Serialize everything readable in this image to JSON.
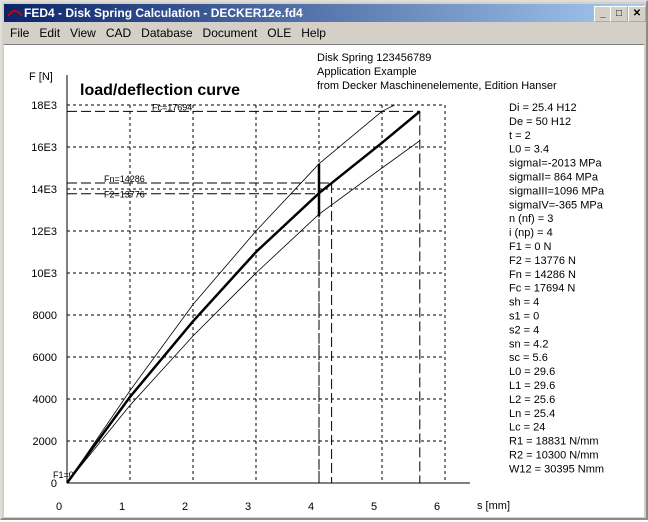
{
  "window": {
    "title": "FED4  -  Disk Spring Calculation  -  DECKER12e.fd4",
    "icon": "FED4"
  },
  "menu": [
    "File",
    "Edit",
    "View",
    "CAD",
    "Database",
    "Document",
    "OLE",
    "Help"
  ],
  "header": [
    "Disk Spring  123456789",
    "Application Example",
    "from Decker Maschinenelemente, Edition Hanser"
  ],
  "chart_data": {
    "type": "line",
    "title": "load/deflection curve",
    "x_label": "s [mm]",
    "y_label": "F [N]",
    "xlim": [
      0,
      6
    ],
    "xticks": [
      0,
      1,
      2,
      3,
      4,
      5,
      6
    ],
    "ylim": [
      0,
      18000
    ],
    "yticks": [
      0,
      2000,
      4000,
      6000,
      8000,
      {
        "value": 10000,
        "label": "10E3"
      },
      {
        "value": 12000,
        "label": "12E3"
      },
      {
        "value": 14000,
        "label": "14E3"
      },
      {
        "value": 16000,
        "label": "16E3"
      },
      {
        "value": 18000,
        "label": "18E3"
      }
    ],
    "grid": true,
    "series": [
      {
        "color": "#000000",
        "width": 2.5,
        "x": [
          0,
          1,
          2,
          3,
          4,
          5,
          5.6
        ],
        "values": [
          0,
          4100,
          7700,
          11000,
          13800,
          16200,
          17694
        ]
      },
      {
        "color": "#000000",
        "width": 0.8,
        "x": [
          0,
          1,
          2,
          3,
          4,
          5,
          5.2
        ],
        "values": [
          0,
          4400,
          8500,
          12000,
          15200,
          17700,
          18000
        ]
      },
      {
        "color": "#000000",
        "width": 0.8,
        "x": [
          0,
          1,
          2,
          3,
          4,
          5,
          5.6
        ],
        "values": [
          0,
          3700,
          7000,
          10000,
          12800,
          15000,
          16300
        ]
      }
    ],
    "reference_lines": [
      {
        "label": "Fc=17694",
        "value": 17694,
        "s": 5.6
      },
      {
        "label": "Fn=14286",
        "value": 14286,
        "s": 4.2
      },
      {
        "label": "F2=13776",
        "value": 13776,
        "s": 4
      },
      {
        "label": "F1=0",
        "value": 0,
        "s": 0
      }
    ],
    "tolerance_bar": {
      "s": 4,
      "low": 12700,
      "high": 15200
    }
  },
  "parameters": [
    "Di = 25.4 H12",
    "De = 50 H12",
    "t = 2",
    "L0 = 3.4",
    "sigmaI=-2013 MPa",
    "sigmaII= 864 MPa",
    "sigmaIII=1096 MPa",
    "sigmaIV=-365 MPa",
    "n (nf) =    3",
    "i (np) =    4",
    "F1 = 0 N",
    "F2 = 13776 N",
    "Fn = 14286 N",
    "Fc = 17694 N",
    "sh = 4",
    "s1 = 0",
    "s2 = 4",
    "sn = 4.2",
    "sc = 5.6",
    "L0 = 29.6",
    "L1 = 29.6",
    "L2 = 25.6",
    "Ln = 25.4",
    "Lc = 24",
    "R1 = 18831 N/mm",
    "R2 = 10300 N/mm",
    "W12 = 30395 Nmm"
  ]
}
